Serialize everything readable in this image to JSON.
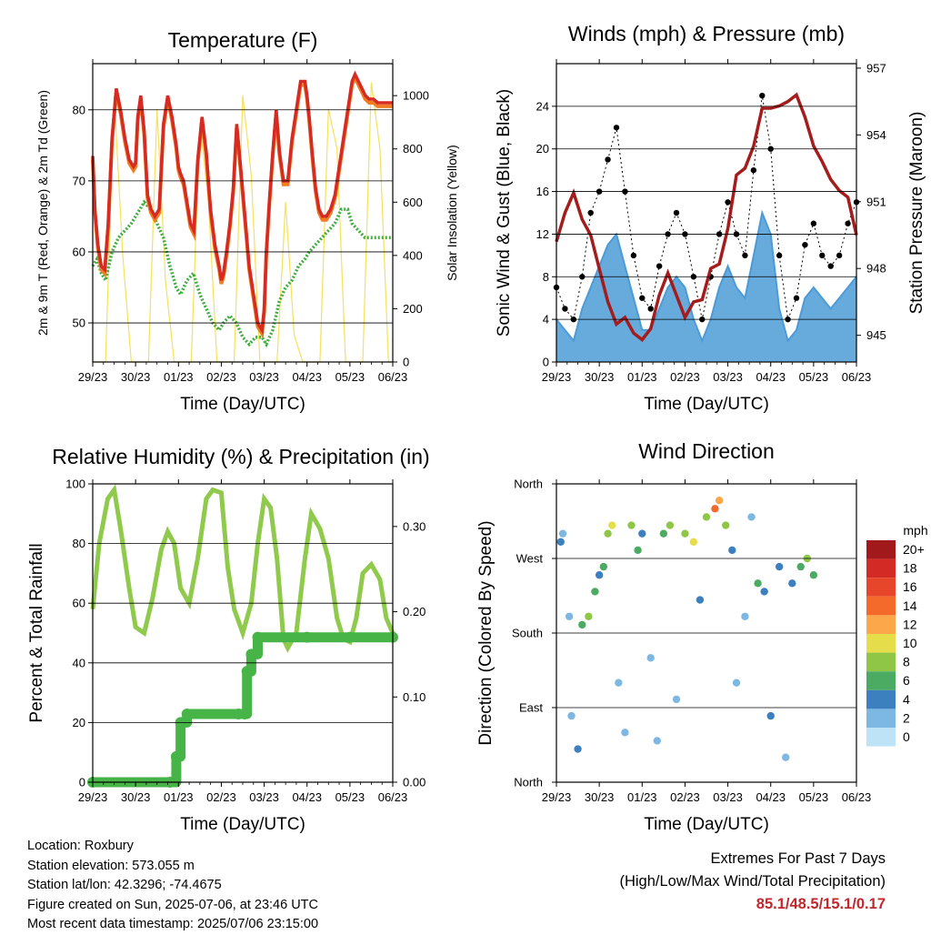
{
  "station": {
    "location": "Location: Roxbury",
    "elevation": "Station elevation: 573.055 m",
    "latlon": "Station lat/lon: 42.3296; -74.4675",
    "created": "Figure created on Sun, 2025-07-06, at 23:46 UTC",
    "latest": "Most recent data timestamp: 2025/07/06 23:15:00"
  },
  "extremes": {
    "heading": "Extremes For Past 7 Days",
    "subheading": "(High/Low/Max Wind/Total Precipitation)",
    "values": "85.1/48.5/15.1/0.17"
  },
  "colors": {
    "temp_2m": "#d62a22",
    "temp_9m": "#f07d22",
    "dewpoint": "#3fae3f",
    "solar": "#f7e05a",
    "wind": "#4c9bd6",
    "gust": "#000000",
    "pressure": "#a51c1c",
    "rh": "#8fca4c",
    "precip": "#47b447"
  },
  "chart_data": [
    {
      "id": "temperature",
      "type": "line",
      "title": "Temperature (F)",
      "xlabel": "Time (Day/UTC)",
      "ylabel": "2m & 9m T (Red, Orange) & 2m Td (Green)",
      "y2label": "Solar Insolation (Yellow)",
      "x_ticks": [
        "29/23",
        "30/23",
        "01/23",
        "02/23",
        "03/23",
        "04/23",
        "05/23",
        "06/23"
      ],
      "ylim": [
        44.5,
        86.5
      ],
      "y_ticks": [
        50,
        60,
        70,
        80
      ],
      "y2lim": [
        0,
        1120
      ],
      "y2_ticks": [
        0,
        200,
        400,
        600,
        800,
        1000
      ],
      "grid": true,
      "series": [
        {
          "name": "2m T",
          "axis": "left",
          "x": [
            0,
            0.05,
            0.12,
            0.2,
            0.28,
            0.36,
            0.45,
            0.55,
            0.65,
            0.75,
            0.85,
            0.95,
            1,
            1.05,
            1.12,
            1.2,
            1.28,
            1.36,
            1.45,
            1.55,
            1.65,
            1.75,
            1.85,
            1.95,
            2,
            2.05,
            2.12,
            2.2,
            2.28,
            2.36,
            2.45,
            2.55,
            2.65,
            2.75,
            2.85,
            2.95,
            3,
            3.05,
            3.12,
            3.2,
            3.28,
            3.36,
            3.45,
            3.55,
            3.65,
            3.75,
            3.85,
            3.95,
            4,
            4.05,
            4.12,
            4.2,
            4.28,
            4.36,
            4.45,
            4.55,
            4.65,
            4.75,
            4.85,
            4.95,
            5,
            5.05,
            5.12,
            5.2,
            5.28,
            5.36,
            5.45,
            5.55,
            5.65,
            5.75,
            5.85,
            5.95,
            6,
            6.05,
            6.12,
            6.2,
            6.28,
            6.36,
            6.45,
            6.55,
            6.65,
            6.75,
            6.85,
            6.95,
            7
          ],
          "y": [
            73.5,
            66,
            61,
            58,
            57.5,
            64,
            76,
            83,
            80,
            76,
            73,
            72,
            72.5,
            79,
            82,
            77,
            68,
            66,
            65,
            66,
            78,
            82,
            79,
            75,
            72,
            71,
            70,
            67,
            64,
            63,
            73,
            79,
            74,
            66,
            61,
            58,
            56,
            57,
            60,
            64,
            69,
            78,
            72,
            65,
            58,
            54,
            50,
            49,
            52,
            60,
            67,
            74,
            80,
            74,
            70,
            70,
            76,
            80,
            84,
            84,
            82,
            79,
            74,
            69,
            66,
            65,
            65,
            66,
            68,
            72,
            76,
            80,
            82,
            84,
            85,
            84,
            83,
            82,
            81.5,
            81.5,
            81,
            81,
            81,
            81,
            81
          ]
        },
        {
          "name": "Td",
          "axis": "left",
          "x": [
            0,
            0.1,
            0.2,
            0.3,
            0.45,
            0.6,
            0.75,
            0.9,
            1,
            1.1,
            1.2,
            1.35,
            1.5,
            1.65,
            1.8,
            1.95,
            2.05,
            2.2,
            2.35,
            2.5,
            2.65,
            2.8,
            2.95,
            3.05,
            3.2,
            3.35,
            3.5,
            3.65,
            3.8,
            3.95,
            4.05,
            4.2,
            4.35,
            4.5,
            4.65,
            4.8,
            4.95,
            5.05,
            5.2,
            5.35,
            5.5,
            5.65,
            5.8,
            5.95,
            6.05,
            6.2,
            6.35,
            6.5,
            6.65,
            6.8,
            6.95,
            7
          ],
          "y": [
            58,
            59,
            57,
            56,
            60,
            62,
            63,
            64,
            65,
            66,
            67,
            66,
            64,
            62,
            58,
            55,
            54,
            56,
            57,
            54,
            52,
            50,
            49,
            50,
            51,
            50,
            48,
            47,
            48,
            48,
            47,
            49,
            53,
            55,
            56,
            58,
            59,
            60,
            61,
            62,
            63,
            64,
            66,
            66,
            64,
            63,
            62,
            62,
            62,
            62,
            62,
            62
          ]
        },
        {
          "name": "Solar",
          "axis": "right",
          "x": [
            0,
            0.3,
            0.5,
            0.7,
            0.9,
            1,
            1.3,
            1.5,
            1.7,
            1.9,
            2,
            2.3,
            2.5,
            2.7,
            2.9,
            3,
            3.3,
            3.5,
            3.7,
            3.9,
            4,
            4.3,
            4.5,
            4.7,
            4.9,
            5,
            5.3,
            5.5,
            5.7,
            5.9,
            6,
            6.3,
            6.5,
            6.7,
            6.9,
            7
          ],
          "y": [
            0,
            0,
            1000,
            400,
            0,
            0,
            0,
            950,
            300,
            0,
            0,
            0,
            900,
            600,
            0,
            0,
            0,
            1000,
            700,
            0,
            0,
            0,
            600,
            100,
            0,
            0,
            0,
            950,
            800,
            0,
            0,
            0,
            1050,
            800,
            0,
            0
          ]
        }
      ]
    },
    {
      "id": "winds",
      "type": "line",
      "title": "Winds (mph) & Pressure (mb)",
      "xlabel": "Time (Day/UTC)",
      "ylabel": "Sonic Wind & Gust (Blue, Black)",
      "y2label": "Station Pressure (Maroon)",
      "x_ticks": [
        "29/23",
        "30/23",
        "01/23",
        "02/23",
        "03/23",
        "04/23",
        "05/23",
        "06/23"
      ],
      "ylim": [
        0,
        28
      ],
      "y_ticks": [
        0,
        4,
        8,
        12,
        16,
        20,
        24
      ],
      "y2lim": [
        943.8,
        957.2
      ],
      "y2_ticks": [
        945,
        948,
        951,
        954,
        957
      ],
      "grid": true,
      "series": [
        {
          "name": "Gust",
          "axis": "left",
          "x": [
            0,
            0.2,
            0.4,
            0.6,
            0.8,
            1,
            1.2,
            1.4,
            1.6,
            1.8,
            2,
            2.2,
            2.4,
            2.6,
            2.8,
            3,
            3.2,
            3.4,
            3.6,
            3.8,
            4,
            4.2,
            4.4,
            4.6,
            4.8,
            5,
            5.2,
            5.4,
            5.6,
            5.8,
            6,
            6.2,
            6.4,
            6.6,
            6.8,
            7
          ],
          "y": [
            7,
            5,
            4,
            8,
            14,
            16,
            19,
            22,
            16,
            10,
            6,
            5,
            9,
            12,
            14,
            12,
            8,
            4,
            8,
            12,
            15,
            12,
            10,
            18,
            25,
            20,
            10,
            4,
            6,
            11,
            13,
            10,
            9,
            10,
            13,
            15
          ]
        },
        {
          "name": "Sonic Wind",
          "axis": "left",
          "x": [
            0,
            0.2,
            0.4,
            0.6,
            0.8,
            1,
            1.2,
            1.4,
            1.6,
            1.8,
            2,
            2.2,
            2.4,
            2.6,
            2.8,
            3,
            3.2,
            3.4,
            3.6,
            3.8,
            4,
            4.2,
            4.4,
            4.6,
            4.8,
            5,
            5.2,
            5.4,
            5.6,
            5.8,
            6,
            6.2,
            6.4,
            6.6,
            6.8,
            7
          ],
          "y": [
            4,
            3,
            2,
            5,
            7,
            9,
            11,
            12,
            9,
            6,
            3,
            3,
            5,
            7,
            8,
            7,
            4,
            2,
            4,
            7,
            9,
            7,
            6,
            10,
            14,
            12,
            5,
            2,
            3,
            6,
            7,
            6,
            5,
            6,
            7,
            8
          ]
        },
        {
          "name": "Pressure",
          "axis": "right",
          "x": [
            0,
            0.2,
            0.4,
            0.6,
            0.8,
            1,
            1.2,
            1.4,
            1.6,
            1.8,
            2,
            2.2,
            2.4,
            2.6,
            2.8,
            3,
            3.2,
            3.4,
            3.6,
            3.8,
            4,
            4.2,
            4.4,
            4.6,
            4.8,
            5,
            5.2,
            5.4,
            5.6,
            5.8,
            6,
            6.2,
            6.4,
            6.6,
            6.8,
            7
          ],
          "y": [
            949.2,
            950.5,
            951.4,
            950.2,
            949.5,
            948,
            946.5,
            945.5,
            945.8,
            945.1,
            944.8,
            945.3,
            946.8,
            947.8,
            946.8,
            945.8,
            946.5,
            946.6,
            948,
            948.2,
            949.8,
            952.2,
            952.5,
            953.5,
            955.2,
            955.2,
            955.3,
            955.5,
            955.8,
            954.8,
            953.5,
            952.8,
            952,
            951.5,
            951.2,
            949.5
          ]
        }
      ]
    },
    {
      "id": "humidity",
      "type": "line",
      "title": "Relative Humidity (%) & Precipitation (in)",
      "xlabel": "Time (Day/UTC)",
      "ylabel": "Percent & Total Rainfall",
      "x_ticks": [
        "29/23",
        "30/23",
        "01/23",
        "02/23",
        "03/23",
        "04/23",
        "05/23",
        "06/23"
      ],
      "ylim": [
        0,
        100
      ],
      "y_ticks": [
        0,
        20,
        40,
        60,
        80,
        100
      ],
      "y2lim": [
        0,
        0.35
      ],
      "y2_ticks": [
        "0.00",
        "0.10",
        "0.20",
        "0.30"
      ],
      "grid": true,
      "series": [
        {
          "name": "RH",
          "axis": "left",
          "x": [
            0,
            0.15,
            0.35,
            0.5,
            0.65,
            0.85,
            1,
            1.2,
            1.4,
            1.6,
            1.75,
            1.9,
            2.05,
            2.25,
            2.45,
            2.65,
            2.8,
            3,
            3.15,
            3.3,
            3.5,
            3.7,
            3.85,
            4,
            4.15,
            4.3,
            4.45,
            4.55,
            4.75,
            4.95,
            5.1,
            5.3,
            5.5,
            5.7,
            5.85,
            6,
            6.15,
            6.3,
            6.5,
            6.7,
            6.85,
            7
          ],
          "y": [
            58,
            80,
            95,
            98,
            85,
            65,
            52,
            50,
            62,
            78,
            84,
            80,
            65,
            60,
            75,
            95,
            98,
            97,
            72,
            58,
            50,
            60,
            80,
            95,
            92,
            75,
            48,
            45,
            50,
            75,
            90,
            85,
            75,
            55,
            48,
            47,
            55,
            70,
            73,
            68,
            55,
            50
          ]
        },
        {
          "name": "Precipitation",
          "axis": "right",
          "x": [
            0,
            1.8,
            1.95,
            2.05,
            2.2,
            3.4,
            3.55,
            3.6,
            3.7,
            3.85,
            5,
            6,
            7
          ],
          "y": [
            0,
            0,
            0.03,
            0.07,
            0.08,
            0.08,
            0.08,
            0.13,
            0.15,
            0.17,
            0.17,
            0.17,
            0.17
          ]
        }
      ]
    },
    {
      "id": "wind_direction",
      "type": "scatter",
      "title": "Wind Direction",
      "xlabel": "Time (Day/UTC)",
      "ylabel": "Direction (Colored By Speed)",
      "x_ticks": [
        "29/23",
        "30/23",
        "01/23",
        "02/23",
        "03/23",
        "04/23",
        "05/23",
        "06/23"
      ],
      "y_ticks": [
        "North",
        "East",
        "South",
        "West",
        "North"
      ],
      "ylim": [
        0,
        360
      ],
      "legend": {
        "title": "mph",
        "labels": [
          "20+",
          "18",
          "16",
          "14",
          "12",
          "10",
          "8",
          "6",
          "4",
          "2",
          "0"
        ],
        "colors": [
          "#a2191c",
          "#d42a26",
          "#e8462a",
          "#f36a2a",
          "#fba74a",
          "#e6dd4a",
          "#8fc646",
          "#4bab63",
          "#3c80c0",
          "#7cb8e2",
          "#bfe3f6"
        ]
      },
      "points": [
        {
          "x": 0.1,
          "dir": 290,
          "speed": 4
        },
        {
          "x": 0.15,
          "dir": 300,
          "speed": 2
        },
        {
          "x": 0.3,
          "dir": 200,
          "speed": 2
        },
        {
          "x": 0.35,
          "dir": 80,
          "speed": 2
        },
        {
          "x": 0.5,
          "dir": 40,
          "speed": 4
        },
        {
          "x": 0.6,
          "dir": 190,
          "speed": 6
        },
        {
          "x": 0.75,
          "dir": 200,
          "speed": 8
        },
        {
          "x": 0.9,
          "dir": 230,
          "speed": 6
        },
        {
          "x": 1.0,
          "dir": 250,
          "speed": 4
        },
        {
          "x": 1.1,
          "dir": 260,
          "speed": 6
        },
        {
          "x": 1.2,
          "dir": 300,
          "speed": 8
        },
        {
          "x": 1.3,
          "dir": 310,
          "speed": 10
        },
        {
          "x": 1.45,
          "dir": 120,
          "speed": 2
        },
        {
          "x": 1.6,
          "dir": 60,
          "speed": 2
        },
        {
          "x": 1.75,
          "dir": 310,
          "speed": 8
        },
        {
          "x": 1.9,
          "dir": 280,
          "speed": 6
        },
        {
          "x": 2.0,
          "dir": 300,
          "speed": 4
        },
        {
          "x": 2.2,
          "dir": 150,
          "speed": 2
        },
        {
          "x": 2.35,
          "dir": 50,
          "speed": 2
        },
        {
          "x": 2.5,
          "dir": 300,
          "speed": 6
        },
        {
          "x": 2.65,
          "dir": 310,
          "speed": 8
        },
        {
          "x": 2.8,
          "dir": 100,
          "speed": 2
        },
        {
          "x": 3.0,
          "dir": 300,
          "speed": 8
        },
        {
          "x": 3.2,
          "dir": 290,
          "speed": 10
        },
        {
          "x": 3.35,
          "dir": 220,
          "speed": 4
        },
        {
          "x": 3.5,
          "dir": 320,
          "speed": 8
        },
        {
          "x": 3.7,
          "dir": 330,
          "speed": 14
        },
        {
          "x": 3.8,
          "dir": 340,
          "speed": 12
        },
        {
          "x": 3.95,
          "dir": 310,
          "speed": 8
        },
        {
          "x": 4.1,
          "dir": 280,
          "speed": 4
        },
        {
          "x": 4.2,
          "dir": 120,
          "speed": 2
        },
        {
          "x": 4.4,
          "dir": 200,
          "speed": 2
        },
        {
          "x": 4.55,
          "dir": 320,
          "speed": 2
        },
        {
          "x": 4.7,
          "dir": 240,
          "speed": 6
        },
        {
          "x": 4.85,
          "dir": 230,
          "speed": 4
        },
        {
          "x": 5.0,
          "dir": 80,
          "speed": 4
        },
        {
          "x": 5.2,
          "dir": 260,
          "speed": 4
        },
        {
          "x": 5.35,
          "dir": 30,
          "speed": 2
        },
        {
          "x": 5.5,
          "dir": 240,
          "speed": 4
        },
        {
          "x": 5.7,
          "dir": 260,
          "speed": 6
        },
        {
          "x": 5.85,
          "dir": 270,
          "speed": 8
        },
        {
          "x": 6.0,
          "dir": 250,
          "speed": 6
        }
      ]
    }
  ]
}
